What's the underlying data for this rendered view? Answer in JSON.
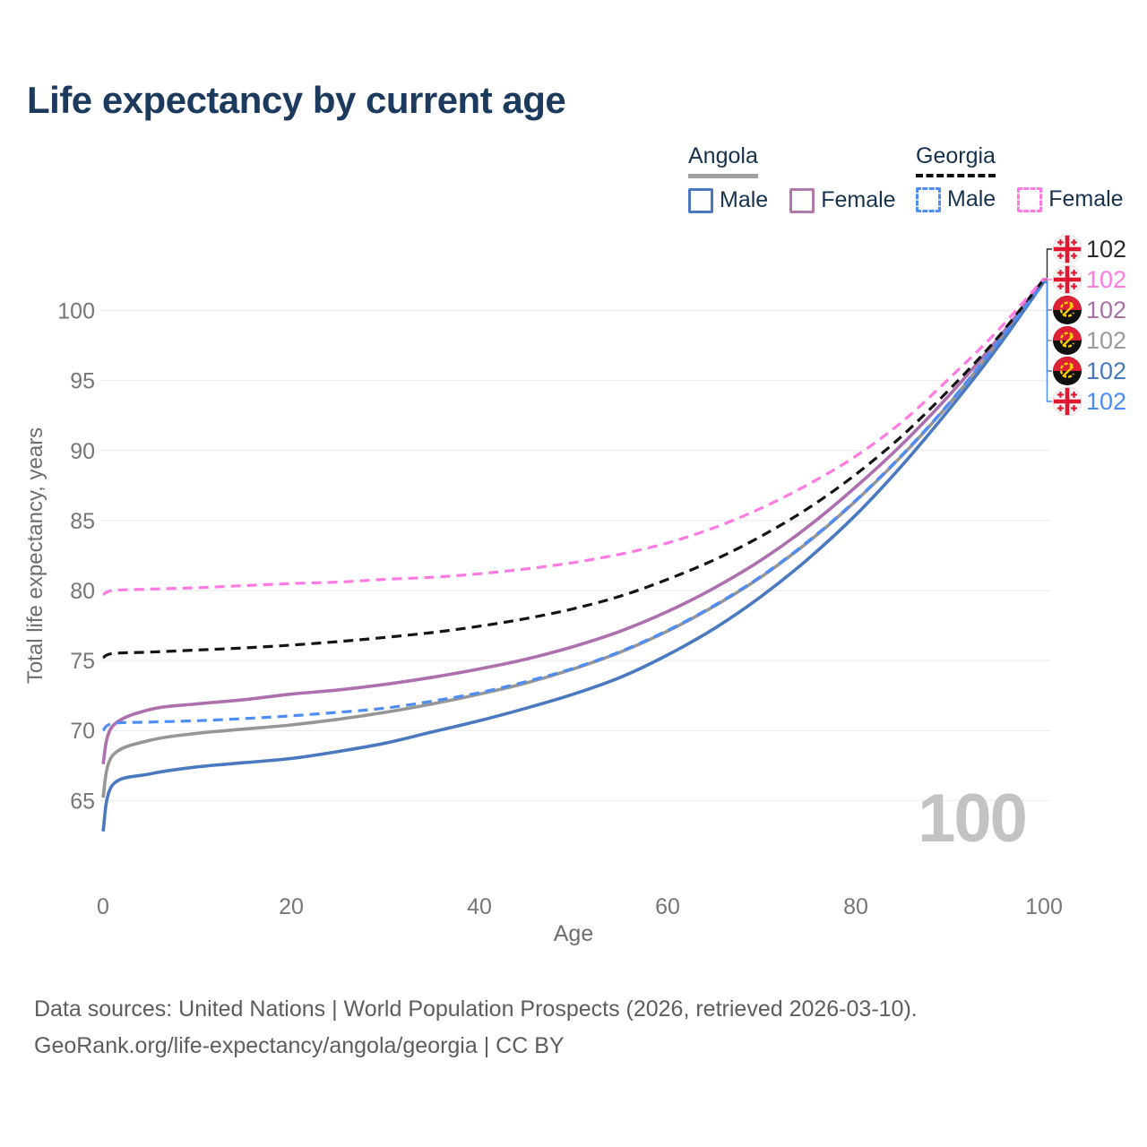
{
  "title": "Life expectancy by current age",
  "legend": {
    "groups": [
      {
        "country": "Angola",
        "line_style": "solid",
        "underline_color": "#a0a0a0",
        "items": [
          {
            "label": "Male",
            "color": "#4a79c0",
            "dashed": false
          },
          {
            "label": "Female",
            "color": "#b07ab0",
            "dashed": false
          }
        ]
      },
      {
        "country": "Georgia",
        "line_style": "dashed",
        "underline_color": "#111111",
        "items": [
          {
            "label": "Male",
            "color": "#4d8df5",
            "dashed": true
          },
          {
            "label": "Female",
            "color": "#ff7ae3",
            "dashed": true
          }
        ]
      }
    ]
  },
  "chart_data": {
    "type": "line",
    "title": "Life expectancy by current age",
    "xlabel": "Age",
    "ylabel": "Total life expectancy, years",
    "x": [
      0,
      1,
      5,
      10,
      15,
      20,
      25,
      30,
      35,
      40,
      45,
      50,
      55,
      60,
      65,
      70,
      75,
      80,
      85,
      90,
      95,
      100
    ],
    "series": [
      {
        "key": "angola_both",
        "name": "Angola All",
        "country": "angola",
        "color": "#969696",
        "dashed": false,
        "values": [
          65.2,
          68.2,
          69.3,
          69.8,
          70.1,
          70.4,
          70.8,
          71.3,
          71.9,
          72.6,
          73.4,
          74.4,
          75.6,
          77.1,
          78.9,
          81.0,
          83.5,
          86.4,
          89.7,
          93.4,
          97.6,
          102.1
        ]
      },
      {
        "key": "angola_female",
        "name": "Angola Female",
        "country": "angola",
        "color": "#ad6fad",
        "dashed": false,
        "values": [
          67.6,
          70.3,
          71.5,
          71.9,
          72.2,
          72.6,
          72.9,
          73.3,
          73.8,
          74.4,
          75.1,
          76.0,
          77.1,
          78.5,
          80.2,
          82.2,
          84.6,
          87.4,
          90.5,
          94.0,
          97.9,
          102.2
        ]
      },
      {
        "key": "angola_male",
        "name": "Angola Male",
        "country": "angola",
        "color": "#4a79c0",
        "dashed": false,
        "values": [
          62.8,
          66.1,
          66.9,
          67.4,
          67.7,
          68.0,
          68.5,
          69.1,
          69.9,
          70.7,
          71.6,
          72.6,
          73.8,
          75.4,
          77.3,
          79.6,
          82.3,
          85.4,
          89.0,
          93.0,
          97.3,
          102.05
        ]
      },
      {
        "key": "georgia_both",
        "name": "Georgia All",
        "country": "georgia",
        "color": "#141414",
        "dashed": true,
        "values": [
          75.2,
          75.5,
          75.6,
          75.75,
          75.9,
          76.1,
          76.35,
          76.65,
          77.0,
          77.45,
          78.0,
          78.7,
          79.6,
          80.8,
          82.2,
          83.9,
          85.9,
          88.3,
          91.1,
          94.4,
          98.0,
          102.25
        ]
      },
      {
        "key": "georgia_female",
        "name": "Georgia Female",
        "country": "georgia",
        "color": "#ff7ae3",
        "dashed": true,
        "values": [
          79.7,
          80.0,
          80.1,
          80.2,
          80.35,
          80.5,
          80.6,
          80.8,
          80.95,
          81.2,
          81.55,
          82.0,
          82.6,
          83.4,
          84.5,
          85.9,
          87.6,
          89.6,
          92.1,
          95.2,
          98.5,
          102.3
        ]
      },
      {
        "key": "georgia_male",
        "name": "Georgia Male",
        "country": "georgia",
        "color": "#4d8df5",
        "dashed": true,
        "values": [
          70.0,
          70.5,
          70.6,
          70.7,
          70.85,
          71.05,
          71.3,
          71.6,
          72.1,
          72.7,
          73.5,
          74.45,
          75.65,
          77.15,
          78.95,
          81.05,
          83.55,
          86.45,
          89.75,
          93.45,
          97.65,
          102.0
        ]
      }
    ],
    "xticks": [
      0,
      20,
      40,
      60,
      80,
      100
    ],
    "yticks": [
      65,
      70,
      75,
      80,
      85,
      90,
      95,
      100
    ],
    "xlim": [
      0,
      100
    ],
    "ylim": [
      62,
      103
    ],
    "grid": "horizontal",
    "legend_position": "top-right"
  },
  "end_labels": [
    {
      "series": "georgia_both",
      "label": "102",
      "color": "#2b2b2b",
      "flag": "georgia"
    },
    {
      "series": "georgia_female",
      "label": "102",
      "color": "#ff7ae3",
      "flag": "georgia"
    },
    {
      "series": "angola_female",
      "label": "102",
      "color": "#a96fa9",
      "flag": "angola"
    },
    {
      "series": "angola_both",
      "label": "102",
      "color": "#9a9a9a",
      "flag": "angola"
    },
    {
      "series": "angola_male",
      "label": "102",
      "color": "#4878be",
      "flag": "angola"
    },
    {
      "series": "georgia_male",
      "label": "102",
      "color": "#4a8cf7",
      "flag": "georgia"
    }
  ],
  "watermark": "100",
  "footer": {
    "line1": "Data sources: United Nations | World Population Prospects (2026, retrieved 2026-03-10).",
    "line2": "GeoRank.org/life-expectancy/angola/georgia | CC BY"
  }
}
